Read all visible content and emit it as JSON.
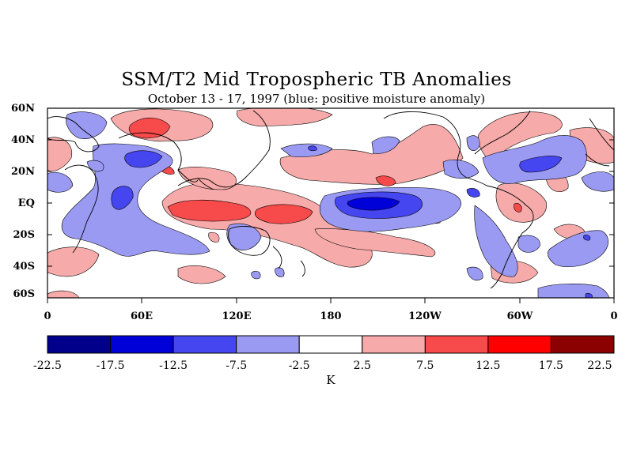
{
  "title": "SSM/T2 Mid Tropospheric TB Anomalies",
  "subtitle": "October 13 - 17, 1997 (blue: positive moisture anomaly)",
  "lat_labels": [
    "60N",
    "40N",
    "20N",
    "EQ",
    "20S",
    "40S",
    "60S"
  ],
  "lon_labels": [
    "0",
    "60E",
    "120E",
    "180",
    "120W",
    "60W",
    "0"
  ],
  "colorbar": {
    "ticks": [
      "-22.5",
      "-17.5",
      "-12.5",
      "-7.5",
      "-2.5",
      "2.5",
      "7.5",
      "12.5",
      "17.5",
      "22.5"
    ],
    "colors": [
      "#00008b",
      "#0000d8",
      "#4646f0",
      "#9a9af3",
      "#ffffff",
      "#f7aaaa",
      "#f74a4a",
      "#ff0000",
      "#8b0000"
    ],
    "unit": "K"
  }
}
